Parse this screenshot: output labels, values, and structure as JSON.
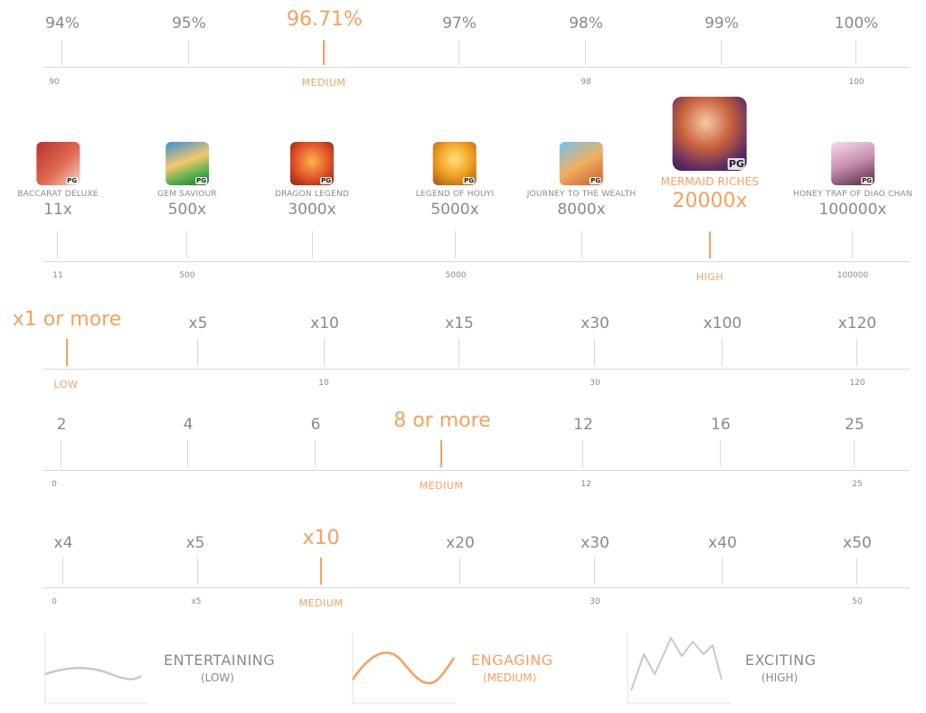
{
  "rtp": {
    "labels": [
      "94%",
      "95%",
      "96.71%",
      "97%",
      "98%",
      "99%",
      "100%"
    ],
    "small": [
      "90",
      "MEDIUM",
      "98",
      "100"
    ]
  },
  "max_win": {
    "games": [
      {
        "name": "BACCARAT DELUXE",
        "mult": "11x"
      },
      {
        "name": "GEM SAVIOUR",
        "mult": "500x"
      },
      {
        "name": "DRAGON LEGEND",
        "mult": "3000x"
      },
      {
        "name": "LEGEND OF HOUYI",
        "mult": "5000x"
      },
      {
        "name": "JOURNEY TO THE WEALTH",
        "mult": "8000x"
      },
      {
        "name": "MERMAID RICHES",
        "mult": "20000x"
      },
      {
        "name": "HONEY TRAP OF DIAO CHAN",
        "mult": "100000x"
      }
    ],
    "badge": "PG",
    "small": [
      "11",
      "500",
      "5000",
      "HIGH",
      "100000"
    ]
  },
  "min_mult": {
    "labels": [
      "x1 or more",
      "x5",
      "x10",
      "x15",
      "x30",
      "x100",
      "x120"
    ],
    "small": [
      "LOW",
      "10",
      "30",
      "120"
    ]
  },
  "paylines": {
    "labels": [
      "2",
      "4",
      "6",
      "8 or more",
      "12",
      "16",
      "25"
    ],
    "small": [
      "0",
      "MEDIUM",
      "12",
      "25"
    ]
  },
  "free_spins": {
    "labels": [
      "x4",
      "x5",
      "x10",
      "x20",
      "x30",
      "x40",
      "x50"
    ],
    "small": [
      "0",
      "x5",
      "MEDIUM",
      "30",
      "50"
    ]
  },
  "volatility": [
    {
      "title": "ENTERTAINING",
      "sub": "(LOW)"
    },
    {
      "title": "ENGAGING",
      "sub": "(MEDIUM)"
    },
    {
      "title": "EXCITING",
      "sub": "(HIGH)"
    }
  ],
  "colors": {
    "accent": "#f4a15f",
    "text": "#8a8a8a",
    "line": "#d9d9d9"
  }
}
